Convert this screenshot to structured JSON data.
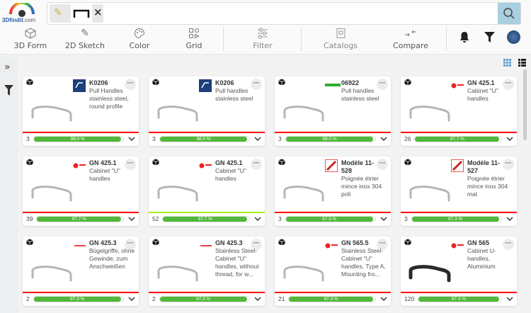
{
  "logo": {
    "brand": "3Dfindit",
    "suffix": ".com"
  },
  "search": {
    "chip_icon": "pencil-icon",
    "chip_sketch": "sketch-thumbnail",
    "remove": "×",
    "button_icon": "search-icon"
  },
  "toolbar": [
    {
      "label": "3D Form",
      "icon": "cube-icon"
    },
    {
      "label": "2D Sketch",
      "icon": "pencil-icon"
    },
    {
      "label": "Color",
      "icon": "palette-icon"
    },
    {
      "label": "Grid",
      "icon": "grid-shapes-icon"
    },
    {
      "label": "Filter",
      "icon": "sliders-icon"
    },
    {
      "label": "Catalogs",
      "icon": "catalog-icon"
    },
    {
      "label": "Compare",
      "icon": "compare-arrows-icon"
    }
  ],
  "header_icons": [
    "bell-icon",
    "filter-icon",
    "avatar"
  ],
  "colors": {
    "accent": "#a9cfe0",
    "progress": "#52b83a",
    "separator_red": "#ff0000",
    "separator_green": "#a4ef1c"
  },
  "results": [
    {
      "code": "K0206",
      "desc": "Pull Handles stainless steel, round profile",
      "count": "3",
      "match": "98.0 %",
      "pct": 98.0,
      "brand": "kipp",
      "sep": "red"
    },
    {
      "code": "K0206",
      "desc": "Pull handles stainless steel",
      "count": "3",
      "match": "98.0 %",
      "pct": 98.0,
      "brand": "kipp",
      "sep": "red"
    },
    {
      "code": "06922",
      "desc": "Pull handles stainless steel",
      "count": "3",
      "match": "98.0 %",
      "pct": 98.0,
      "brand": "green",
      "sep": "red"
    },
    {
      "code": "GN 425.1",
      "desc": "Cabinet \"U\" handles",
      "count": "26",
      "match": "97.7 %",
      "pct": 97.7,
      "brand": "ganter",
      "sep": "red"
    },
    {
      "code": "GN 425.1",
      "desc": "Cabinet \"U\" handles",
      "count": "39",
      "match": "97.7 %",
      "pct": 97.7,
      "brand": "ganter",
      "sep": "red"
    },
    {
      "code": "GN 425.1",
      "desc": "Cabinet \"U\" handles",
      "count": "52",
      "match": "97.7 %",
      "pct": 97.7,
      "brand": "ganter",
      "sep": "green"
    },
    {
      "code": "Modèle 11-528",
      "desc": "Poignée étrier mince inox 304 poli",
      "count": "3",
      "match": "97.3 %",
      "pct": 97.3,
      "brand": "stamp",
      "sep": "red"
    },
    {
      "code": "Modèle 11-527",
      "desc": "Poignée étrier mince inox 304 mat",
      "count": "3",
      "match": "97.3 %",
      "pct": 97.3,
      "brand": "stamp",
      "sep": "red"
    },
    {
      "code": "GN 425.3",
      "desc": "Bügelgriffe, ohne Gewinde, zum Anschweißen",
      "count": "2",
      "match": "97.3 %",
      "pct": 97.3,
      "brand": "ganter-small",
      "sep": "red"
    },
    {
      "code": "GN 425.3",
      "desc": "Stainless Steel-Cabinet \"U\" handles, without thread, for w...",
      "count": "2",
      "match": "97.3 %",
      "pct": 97.3,
      "brand": "ganter-small",
      "sep": "red"
    },
    {
      "code": "GN 565.5",
      "desc": "Stainless Steel-Cabinet \"U\" handles, Type A, Mounting fro...",
      "count": "21",
      "match": "97.3 %",
      "pct": 97.3,
      "brand": "ganter",
      "sep": "red"
    },
    {
      "code": "GN 565",
      "desc": "Cabinet U-handles, Aluminium",
      "count": "120",
      "match": "97.3 %",
      "pct": 97.3,
      "brand": "ganter",
      "sep": "red",
      "dark": true
    }
  ]
}
